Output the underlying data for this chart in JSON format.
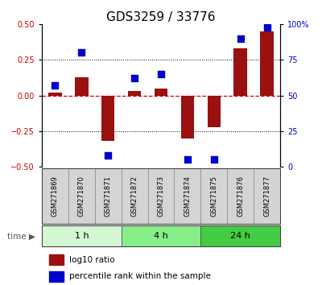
{
  "title": "GDS3259 / 33776",
  "samples": [
    "GSM271869",
    "GSM271870",
    "GSM271871",
    "GSM271872",
    "GSM271873",
    "GSM271874",
    "GSM271875",
    "GSM271876",
    "GSM271877"
  ],
  "log10_ratio": [
    0.02,
    0.13,
    -0.32,
    0.03,
    0.05,
    -0.3,
    -0.22,
    0.33,
    0.45
  ],
  "percentile_rank": [
    57,
    80,
    8,
    62,
    65,
    5,
    5,
    90,
    98
  ],
  "groups": [
    {
      "label": "1 h",
      "start": 0,
      "end": 3,
      "color": "#d4f7d4"
    },
    {
      "label": "4 h",
      "start": 3,
      "end": 6,
      "color": "#88ee88"
    },
    {
      "label": "24 h",
      "start": 6,
      "end": 9,
      "color": "#44cc44"
    }
  ],
  "ylim_left": [
    -0.5,
    0.5
  ],
  "ylim_right": [
    0,
    100
  ],
  "yticks_left": [
    -0.5,
    -0.25,
    0.0,
    0.25,
    0.5
  ],
  "yticks_right": [
    0,
    25,
    50,
    75,
    100
  ],
  "bar_color": "#9B1010",
  "dot_color": "#0000CC",
  "bar_width": 0.5,
  "dot_size": 35,
  "title_fontsize": 11,
  "tick_fontsize": 7,
  "sample_fontsize": 6,
  "label_fontsize": 7.5,
  "group_label_fontsize": 8,
  "time_fontsize": 7.5,
  "background_color": "#ffffff",
  "zero_line_color": "#cc0000",
  "time_label": "time"
}
